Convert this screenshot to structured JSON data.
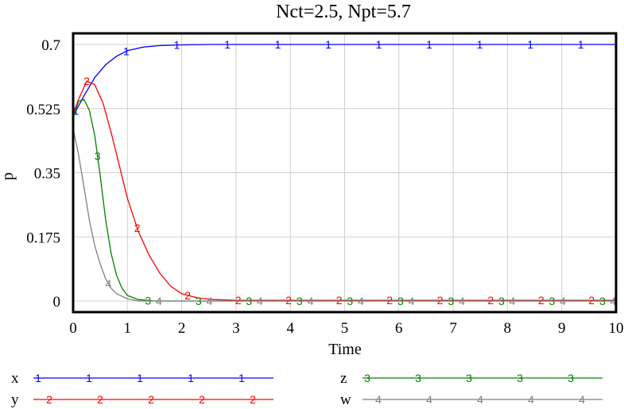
{
  "chart_data": {
    "type": "line",
    "title": "Nct=2.5, Npt=5.7",
    "xlabel": "Time",
    "ylabel": "p",
    "xlim": [
      0,
      10
    ],
    "ylim": [
      0,
      0.7
    ],
    "x_ticks": [
      "0",
      "1",
      "2",
      "3",
      "4",
      "5",
      "6",
      "7",
      "8",
      "9",
      "10"
    ],
    "y_ticks": [
      "0",
      "0.175",
      "0.35",
      "0.525",
      "0.7"
    ],
    "grid": true,
    "legend_position": "bottom",
    "series": [
      {
        "name": "x",
        "marker": "1",
        "color": "#0000ff",
        "points": [
          [
            0,
            0.505
          ],
          [
            0.2,
            0.56
          ],
          [
            0.4,
            0.61
          ],
          [
            0.6,
            0.645
          ],
          [
            0.8,
            0.668
          ],
          [
            1.0,
            0.683
          ],
          [
            1.3,
            0.693
          ],
          [
            1.6,
            0.697
          ],
          [
            2.0,
            0.699
          ],
          [
            2.5,
            0.7
          ],
          [
            10,
            0.7
          ]
        ]
      },
      {
        "name": "y",
        "marker": "2",
        "color": "#ff0000",
        "points": [
          [
            0,
            0.51
          ],
          [
            0.1,
            0.55
          ],
          [
            0.25,
            0.6
          ],
          [
            0.4,
            0.59
          ],
          [
            0.55,
            0.54
          ],
          [
            0.7,
            0.46
          ],
          [
            0.85,
            0.37
          ],
          [
            1.0,
            0.28
          ],
          [
            1.2,
            0.19
          ],
          [
            1.4,
            0.125
          ],
          [
            1.6,
            0.075
          ],
          [
            1.8,
            0.04
          ],
          [
            2.0,
            0.02
          ],
          [
            2.3,
            0.008
          ],
          [
            2.6,
            0.004
          ],
          [
            3.0,
            0.002
          ],
          [
            10,
            0.002
          ]
        ]
      },
      {
        "name": "z",
        "marker": "3",
        "color": "#008000",
        "points": [
          [
            0,
            0.5
          ],
          [
            0.1,
            0.545
          ],
          [
            0.2,
            0.55
          ],
          [
            0.3,
            0.52
          ],
          [
            0.4,
            0.45
          ],
          [
            0.5,
            0.34
          ],
          [
            0.6,
            0.22
          ],
          [
            0.7,
            0.13
          ],
          [
            0.8,
            0.07
          ],
          [
            0.9,
            0.035
          ],
          [
            1.0,
            0.015
          ],
          [
            1.2,
            0.004
          ],
          [
            1.5,
            0.0
          ],
          [
            10,
            0.0
          ]
        ]
      },
      {
        "name": "w",
        "marker": "4",
        "color": "#808080",
        "points": [
          [
            0,
            0.47
          ],
          [
            0.1,
            0.4
          ],
          [
            0.2,
            0.31
          ],
          [
            0.3,
            0.22
          ],
          [
            0.4,
            0.15
          ],
          [
            0.5,
            0.1
          ],
          [
            0.6,
            0.06
          ],
          [
            0.7,
            0.035
          ],
          [
            0.8,
            0.02
          ],
          [
            1.0,
            0.006
          ],
          [
            1.2,
            0.0
          ],
          [
            10,
            0.0
          ]
        ]
      }
    ]
  }
}
